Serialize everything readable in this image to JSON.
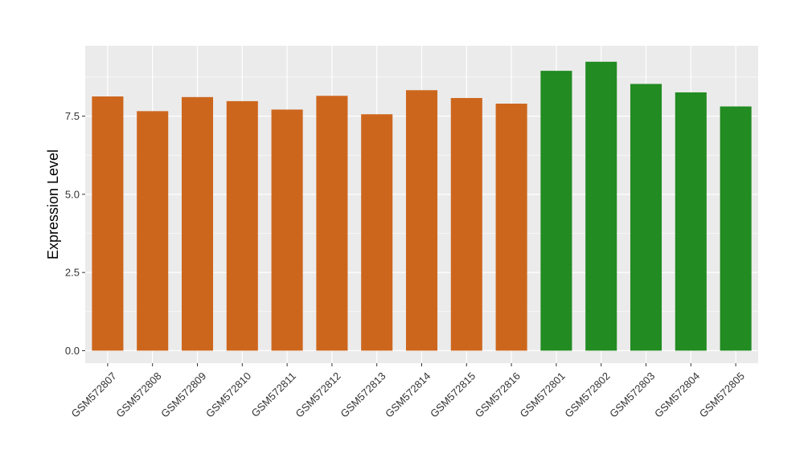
{
  "chart_data": {
    "type": "bar",
    "title": "",
    "xlabel": "",
    "ylabel": "Expression Level",
    "ylim": [
      -0.4,
      9.75
    ],
    "yticks": [
      0.0,
      2.5,
      5.0,
      7.5
    ],
    "ytick_labels": [
      "0.0",
      "2.5",
      "5.0",
      "7.5"
    ],
    "grid": true,
    "legend": "none",
    "categories": [
      "GSM572807",
      "GSM572808",
      "GSM572809",
      "GSM572810",
      "GSM572811",
      "GSM572812",
      "GSM572813",
      "GSM572814",
      "GSM572815",
      "GSM572816",
      "GSM572801",
      "GSM572802",
      "GSM572803",
      "GSM572804",
      "GSM572805"
    ],
    "values": [
      8.13,
      7.66,
      8.11,
      7.98,
      7.71,
      8.15,
      7.56,
      8.33,
      8.08,
      7.9,
      8.95,
      9.24,
      8.53,
      8.26,
      7.81
    ],
    "bar_colors": [
      "#cd661d",
      "#cd661d",
      "#cd661d",
      "#cd661d",
      "#cd661d",
      "#cd661d",
      "#cd661d",
      "#cd661d",
      "#cd661d",
      "#cd661d",
      "#228b22",
      "#228b22",
      "#228b22",
      "#228b22",
      "#228b22"
    ],
    "panel_background": "#ebebeb"
  }
}
